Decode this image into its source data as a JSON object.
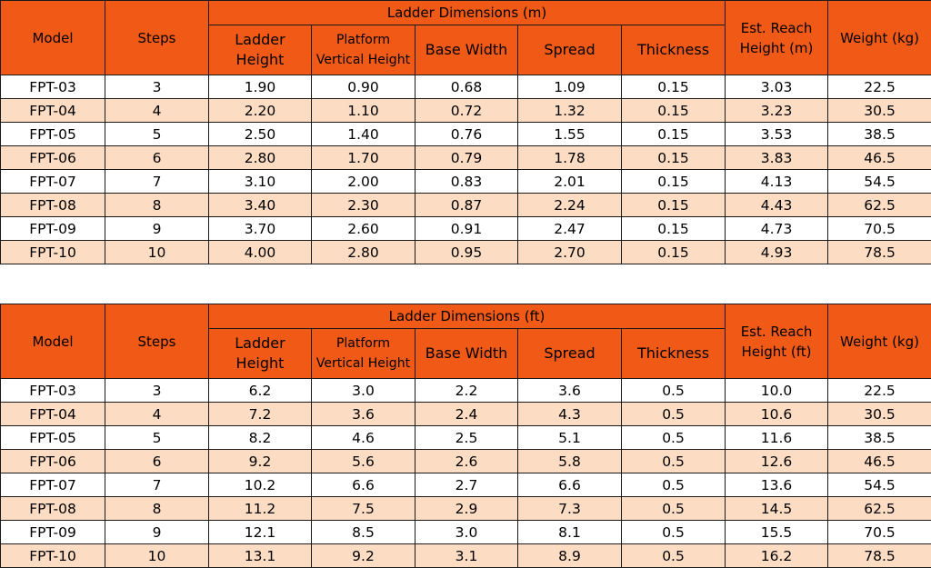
{
  "tables": [
    {
      "id": "metric",
      "headers": {
        "model": "Model",
        "steps": "Steps",
        "group": "Ladder Dimensions (m)",
        "ladder_height": [
          "Ladder",
          "Height"
        ],
        "platform": [
          "Platform",
          "Vertical Height"
        ],
        "base_width": "Base Width",
        "spread": "Spread",
        "thickness": "Thickness",
        "reach": [
          "Est. Reach",
          "Height (m)"
        ],
        "weight": "Weight (kg)"
      },
      "rows": [
        [
          "FPT-03",
          "3",
          "1.90",
          "0.90",
          "0.68",
          "1.09",
          "0.15",
          "3.03",
          "22.5"
        ],
        [
          "FPT-04",
          "4",
          "2.20",
          "1.10",
          "0.72",
          "1.32",
          "0.15",
          "3.23",
          "30.5"
        ],
        [
          "FPT-05",
          "5",
          "2.50",
          "1.40",
          "0.76",
          "1.55",
          "0.15",
          "3.53",
          "38.5"
        ],
        [
          "FPT-06",
          "6",
          "2.80",
          "1.70",
          "0.79",
          "1.78",
          "0.15",
          "3.83",
          "46.5"
        ],
        [
          "FPT-07",
          "7",
          "3.10",
          "2.00",
          "0.83",
          "2.01",
          "0.15",
          "4.13",
          "54.5"
        ],
        [
          "FPT-08",
          "8",
          "3.40",
          "2.30",
          "0.87",
          "2.24",
          "0.15",
          "4.43",
          "62.5"
        ],
        [
          "FPT-09",
          "9",
          "3.70",
          "2.60",
          "0.91",
          "2.47",
          "0.15",
          "4.73",
          "70.5"
        ],
        [
          "FPT-10",
          "10",
          "4.00",
          "2.80",
          "0.95",
          "2.70",
          "0.15",
          "4.93",
          "78.5"
        ]
      ]
    },
    {
      "id": "imperial",
      "headers": {
        "model": "Model",
        "steps": "Steps",
        "group": "Ladder Dimensions (ft)",
        "ladder_height": [
          "Ladder",
          "Height"
        ],
        "platform": [
          "Platform",
          "Vertical Height"
        ],
        "base_width": "Base Width",
        "spread": "Spread",
        "thickness": "Thickness",
        "reach": [
          "Est. Reach",
          "Height (ft)"
        ],
        "weight": "Weight (kg)"
      },
      "rows": [
        [
          "FPT-03",
          "3",
          "6.2",
          "3.0",
          "2.2",
          "3.6",
          "0.5",
          "10.0",
          "22.5"
        ],
        [
          "FPT-04",
          "4",
          "7.2",
          "3.6",
          "2.4",
          "4.3",
          "0.5",
          "10.6",
          "30.5"
        ],
        [
          "FPT-05",
          "5",
          "8.2",
          "4.6",
          "2.5",
          "5.1",
          "0.5",
          "11.6",
          "38.5"
        ],
        [
          "FPT-06",
          "6",
          "9.2",
          "5.6",
          "2.6",
          "5.8",
          "0.5",
          "12.6",
          "46.5"
        ],
        [
          "FPT-07",
          "7",
          "10.2",
          "6.6",
          "2.7",
          "6.6",
          "0.5",
          "13.6",
          "54.5"
        ],
        [
          "FPT-08",
          "8",
          "11.2",
          "7.5",
          "2.9",
          "7.3",
          "0.5",
          "14.5",
          "62.5"
        ],
        [
          "FPT-09",
          "9",
          "12.1",
          "8.5",
          "3.0",
          "8.1",
          "0.5",
          "15.5",
          "70.5"
        ],
        [
          "FPT-10",
          "10",
          "13.1",
          "9.2",
          "3.1",
          "8.9",
          "0.5",
          "16.2",
          "78.5"
        ]
      ]
    }
  ],
  "colors": {
    "header_bg": "#f15a16",
    "row_odd_bg": "#ffffff",
    "row_even_bg": "#fcdcc3",
    "border": "#1a1a1a"
  }
}
